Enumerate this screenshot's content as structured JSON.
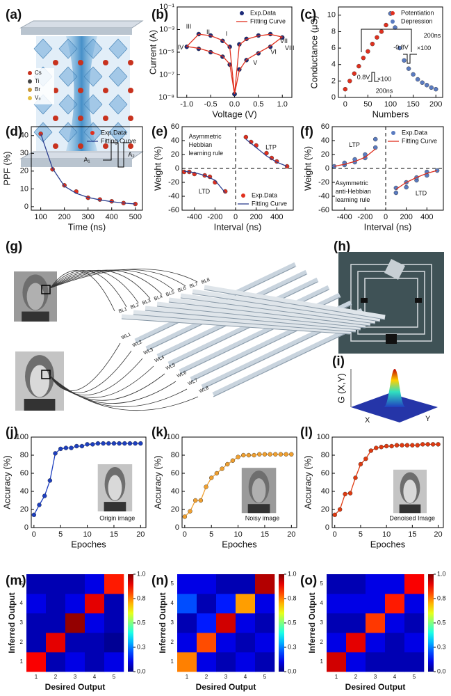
{
  "figure": {
    "panel_labels": [
      "(a)",
      "(b)",
      "(c)",
      "(d)",
      "(e)",
      "(f)",
      "(g)",
      "(h)",
      "(i)",
      "(j)",
      "(k)",
      "(l)",
      "(m)",
      "(n)",
      "(o)"
    ],
    "panel_a": {
      "legend": [
        "Cs",
        "Ti",
        "Br",
        "V₀"
      ]
    },
    "panel_g": {
      "bit_lines": [
        "BL1",
        "BL2",
        "BL3",
        "BL4",
        "BL5",
        "BL6",
        "BL7",
        "BL8"
      ],
      "word_lines": [
        "WL1",
        "WL2",
        "WL3",
        "WL4",
        "WL5",
        "WL6",
        "WL7",
        "WL8"
      ]
    },
    "panel_i": {
      "z_label": "G (X,Y)",
      "x_label": "X",
      "y_label": "Y"
    }
  },
  "chart_data": [
    {
      "type": "line",
      "xlabel": "Voltage (V)",
      "ylabel": "Current (A)",
      "ylog": true,
      "xlim": [
        -1.2,
        1.2
      ],
      "xticks": [
        {
          "value": -1,
          "label": "-1.0"
        },
        -0.5,
        {
          "value": 0,
          "label": "0.0"
        },
        0.5,
        {
          "value": 1,
          "label": "1.0"
        }
      ],
      "ylim": [
        1e-09,
        0.1
      ],
      "yticks": [
        {
          "value": 1e-09,
          "label": "10⁻⁹"
        },
        {
          "value": 1e-07,
          "label": "10⁻⁷"
        },
        {
          "value": 1e-05,
          "label": "10⁻⁵"
        },
        {
          "value": 0.001,
          "label": "10⁻³"
        },
        {
          "value": 0.1,
          "label": "10⁻¹"
        }
      ],
      "x": [
        0,
        0.1,
        0.25,
        0.5,
        0.75,
        1.0,
        0.75,
        0.5,
        0.25,
        0.1,
        0,
        -0.1,
        -0.25,
        -0.5,
        -0.75,
        -1.0,
        -0.75,
        -0.5,
        -0.25,
        -0.1,
        0
      ],
      "series": [
        {
          "name": "Exp.Data",
          "color": "#1c2a78",
          "style": "markers",
          "values": [
            2e-09,
            3e-07,
            2e-06,
            8e-06,
            3e-05,
            0.0002,
            0.0004,
            0.0003,
            0.00015,
            5e-05,
            2e-09,
            3e-05,
            0.0001,
            0.0003,
            0.0004,
            3e-05,
            2e-05,
            1e-05,
            4e-06,
            8e-07,
            2e-09
          ]
        },
        {
          "name": "Fitting Curve",
          "color": "#e0301e",
          "style": "line",
          "values": [
            2e-09,
            2.5e-07,
            2.2e-06,
            9e-06,
            3.5e-05,
            0.00022,
            0.00038,
            0.00028,
            0.00014,
            4.5e-05,
            2e-09,
            2.8e-05,
            0.00011,
            0.00029,
            0.00039,
            3.2e-05,
            2.2e-05,
            1.1e-05,
            4.5e-06,
            9e-07,
            2e-09
          ]
        }
      ],
      "legend": "upper right",
      "annotations": [
        "I",
        "II",
        "III",
        "IV",
        "V",
        "VI",
        "VII",
        "VIII"
      ]
    },
    {
      "type": "scatter",
      "xlabel": "Numbers",
      "ylabel": "Conductance (μS)",
      "xlim": [
        -15,
        215
      ],
      "xticks": [
        0,
        50,
        100,
        150,
        200
      ],
      "ylim": [
        0,
        11
      ],
      "yticks": [
        0,
        2,
        4,
        6,
        8,
        10
      ],
      "series": [
        {
          "name": "Potentiation",
          "color": "#e0301e",
          "style": "markers",
          "x": [
            0,
            10,
            20,
            30,
            40,
            50,
            60,
            70,
            80,
            90,
            100
          ],
          "values": [
            1.0,
            2.0,
            2.9,
            3.8,
            4.8,
            5.6,
            6.5,
            7.3,
            8.0,
            8.8,
            10.2
          ]
        },
        {
          "name": "Depression",
          "color": "#5a7bc0",
          "style": "markers",
          "x": [
            100,
            110,
            120,
            130,
            140,
            150,
            160,
            170,
            180,
            190,
            200
          ],
          "values": [
            10.2,
            8.5,
            6.0,
            4.5,
            3.5,
            2.8,
            2.2,
            1.8,
            1.5,
            1.2,
            1.0
          ]
        }
      ],
      "legend": "upper right",
      "annotations": [
        "0.8V",
        "×100",
        "200ns",
        "-0.8V",
        "×100",
        "200ns"
      ]
    },
    {
      "type": "line",
      "xlabel": "Time (ns)",
      "ylabel": "PPF (%)",
      "xlim": [
        60,
        530
      ],
      "xticks": [
        100,
        200,
        300,
        400,
        500
      ],
      "ylim": [
        -2,
        45
      ],
      "yticks": [
        0,
        10,
        20,
        30,
        40
      ],
      "x": [
        100,
        150,
        200,
        250,
        300,
        350,
        400,
        450,
        500
      ],
      "series": [
        {
          "name": "Exp.Data",
          "color": "#e0301e",
          "style": "markers",
          "values": [
            41,
            21,
            12,
            8.5,
            5,
            4,
            3,
            2,
            1.5
          ]
        },
        {
          "name": "Fitting Curve",
          "color": "#2c3f8f",
          "style": "line",
          "values": [
            41,
            21.5,
            11.5,
            7.5,
            5.2,
            3.8,
            2.8,
            2,
            1.5
          ]
        }
      ],
      "legend": "upper right",
      "annotations": [
        "A₁",
        "A₂"
      ]
    },
    {
      "type": "line",
      "xlabel": "Interval (ns)",
      "ylabel": "Weight (%)",
      "zero_lines": true,
      "xlim": [
        -520,
        560
      ],
      "xticks": [
        -400,
        -200,
        0,
        200,
        400
      ],
      "ylim": [
        -60,
        60
      ],
      "yticks": [
        -60,
        -40,
        -20,
        0,
        20,
        40,
        60
      ],
      "series": [
        {
          "name": "Exp.Data",
          "color": "#e0301e",
          "style": "markers",
          "x": [
            -500,
            -450,
            -400,
            -300,
            -250,
            -200,
            -100,
            100,
            150,
            200,
            300,
            350,
            400,
            500
          ],
          "values": [
            -5,
            -5,
            -8,
            -10,
            -12,
            -20,
            -33,
            45,
            38,
            33,
            22,
            15,
            10,
            3
          ]
        },
        {
          "name": "Fitting Curve",
          "color": "#2c3f8f",
          "style": "line",
          "x": [
            -500,
            -400,
            -300,
            -200,
            -100,
            0,
            100,
            200,
            300,
            400,
            500
          ],
          "values": [
            -4,
            -6,
            -10,
            -17,
            -35,
            null,
            42,
            30,
            18,
            9,
            3
          ]
        }
      ],
      "legend": "lower right",
      "annotations": [
        "Asymmetric",
        "Hebbian",
        "learning rule",
        "LTP",
        "LTD"
      ]
    },
    {
      "type": "line",
      "xlabel": "Interval (ns)",
      "ylabel": "Weight (%)",
      "zero_lines": true,
      "xlim": [
        -520,
        560
      ],
      "xticks": [
        -400,
        -200,
        0,
        200,
        400
      ],
      "ylim": [
        -60,
        60
      ],
      "yticks": [
        -60,
        -40,
        -20,
        0,
        20,
        40,
        60
      ],
      "series": [
        {
          "name": "Exp.Data",
          "color": "#5a7bc0",
          "style": "markers",
          "x": [
            -500,
            -400,
            -400,
            -300,
            -300,
            -200,
            -200,
            -100,
            -100,
            100,
            100,
            200,
            200,
            300,
            300,
            400,
            400,
            500
          ],
          "values": [
            3,
            5,
            8,
            9,
            13,
            15,
            20,
            30,
            42,
            -35,
            -28,
            -27,
            -20,
            -17,
            -13,
            -10,
            -5,
            -3
          ]
        },
        {
          "name": "Fitting Curve",
          "color": "#e0301e",
          "style": "line",
          "x": [
            -500,
            -400,
            -300,
            -200,
            -100,
            0,
            100,
            200,
            300,
            400,
            500
          ],
          "values": [
            3,
            6,
            10,
            16,
            28,
            null,
            -30,
            -20,
            -13,
            -7,
            -3
          ]
        }
      ],
      "legend": "upper right",
      "annotations": [
        "LTP",
        "Asymmetric",
        "anti-Hebbian",
        "learning rule",
        "LTD"
      ]
    },
    {
      "type": "line",
      "xlabel": "Epoches",
      "ylabel": "Accuracy (%)",
      "xlim": [
        -0.5,
        21
      ],
      "xticks": [
        0,
        5,
        10,
        15,
        20
      ],
      "ylim": [
        0,
        100
      ],
      "yticks": [
        0,
        20,
        40,
        60,
        80,
        100
      ],
      "x": [
        0,
        1,
        2,
        3,
        4,
        5,
        6,
        7,
        8,
        9,
        10,
        11,
        12,
        13,
        14,
        15,
        16,
        17,
        18,
        19,
        20
      ],
      "series": [
        {
          "color": "#1d3fbf",
          "style": "line+markers",
          "values": [
            14,
            25,
            35,
            52,
            82,
            87,
            88,
            88,
            90,
            90,
            92,
            92,
            93,
            93,
            93,
            93,
            93,
            93,
            93,
            93,
            93
          ]
        }
      ],
      "annotations": [
        "Origin image"
      ]
    },
    {
      "type": "line",
      "xlabel": "Epoches",
      "ylabel": "Accuracy (%)",
      "xlim": [
        -0.5,
        21
      ],
      "xticks": [
        0,
        5,
        10,
        15,
        20
      ],
      "ylim": [
        0,
        100
      ],
      "yticks": [
        0,
        20,
        40,
        60,
        80,
        100
      ],
      "x": [
        0,
        1,
        2,
        3,
        4,
        5,
        6,
        7,
        8,
        9,
        10,
        11,
        12,
        13,
        14,
        15,
        16,
        17,
        18,
        19,
        20
      ],
      "series": [
        {
          "color": "#f0a030",
          "style": "line+markers",
          "values": [
            12,
            18,
            30,
            30,
            45,
            55,
            60,
            65,
            70,
            74,
            78,
            80,
            80,
            80,
            81,
            81,
            81,
            81,
            81,
            81,
            81
          ]
        }
      ],
      "annotations": [
        "Noisy image"
      ]
    },
    {
      "type": "line",
      "xlabel": "Epoches",
      "ylabel": "Accuracy (%)",
      "xlim": [
        -0.5,
        21
      ],
      "xticks": [
        0,
        5,
        10,
        15,
        20
      ],
      "ylim": [
        0,
        100
      ],
      "yticks": [
        0,
        20,
        40,
        60,
        80,
        100
      ],
      "x": [
        0,
        1,
        2,
        3,
        4,
        5,
        6,
        7,
        8,
        9,
        10,
        11,
        12,
        13,
        14,
        15,
        16,
        17,
        18,
        19,
        20
      ],
      "series": [
        {
          "color": "#e03a10",
          "style": "line+markers",
          "values": [
            14,
            20,
            37,
            38,
            55,
            70,
            76,
            85,
            88,
            89,
            90,
            90,
            91,
            91,
            91,
            91,
            91,
            92,
            92,
            92,
            92
          ]
        }
      ],
      "annotations": [
        "Denoised Image"
      ]
    },
    {
      "type": "heatmap",
      "xlabel": "Desired Output",
      "ylabel": "Inferred Output",
      "colormap": "jet",
      "x_categories": [
        1,
        2,
        3,
        4,
        5
      ],
      "y_categories": [
        1,
        2,
        3,
        4,
        5
      ],
      "zlim": [
        0,
        1
      ],
      "cticks": [
        {
          "value": 0,
          "label": "0.0"
        },
        {
          "value": 0.25,
          "label": "0.3"
        },
        0.5,
        {
          "value": 0.75,
          "label": "0.8"
        },
        {
          "value": 1,
          "label": "1.0"
        }
      ],
      "values": [
        [
          0.88,
          0.05,
          0.1,
          0.05,
          0.1
        ],
        [
          0.05,
          0.9,
          0.05,
          0.05,
          0.02
        ],
        [
          0.05,
          0.05,
          0.98,
          0.1,
          0.05
        ],
        [
          0.1,
          0.05,
          0.1,
          0.9,
          0.05
        ],
        [
          0.05,
          0.05,
          0.05,
          0.1,
          0.85
        ]
      ]
    },
    {
      "type": "heatmap",
      "xlabel": "Desired Output",
      "ylabel": "Inferred Output",
      "colormap": "jet",
      "x_categories": [
        1,
        2,
        3,
        4,
        5
      ],
      "y_categories": [
        1,
        2,
        3,
        4,
        5
      ],
      "zlim": [
        0,
        1
      ],
      "cticks": [
        {
          "value": 0,
          "label": "0.0"
        },
        {
          "value": 0.25,
          "label": "0.3"
        },
        0.5,
        {
          "value": 0.75,
          "label": "0.8"
        },
        {
          "value": 1,
          "label": "1.0"
        }
      ],
      "values": [
        [
          0.75,
          0.1,
          0.05,
          0.1,
          0.05
        ],
        [
          0.1,
          0.8,
          0.1,
          0.05,
          0.1
        ],
        [
          0.05,
          0.15,
          0.92,
          0.1,
          0.05
        ],
        [
          0.2,
          0.05,
          0.15,
          0.72,
          0.1
        ],
        [
          0.1,
          0.1,
          0.05,
          0.05,
          0.95
        ]
      ]
    },
    {
      "type": "heatmap",
      "xlabel": "Desired Output",
      "ylabel": "Inferred Output",
      "colormap": "jet",
      "x_categories": [
        1,
        2,
        3,
        4,
        5
      ],
      "y_categories": [
        1,
        2,
        3,
        4,
        5
      ],
      "zlim": [
        0,
        1
      ],
      "cticks": [
        {
          "value": 0,
          "label": "0.0"
        },
        {
          "value": 0.25,
          "label": "0.3"
        },
        0.5,
        {
          "value": 0.75,
          "label": "0.8"
        },
        {
          "value": 1,
          "label": "1.0"
        }
      ],
      "values": [
        [
          0.92,
          0.1,
          0.05,
          0.05,
          0.05
        ],
        [
          0.1,
          0.9,
          0.1,
          0.05,
          0.1
        ],
        [
          0.05,
          0.05,
          0.82,
          0.1,
          0.05
        ],
        [
          0.1,
          0.1,
          0.1,
          0.85,
          0.1
        ],
        [
          0.05,
          0.05,
          0.1,
          0.1,
          0.88
        ]
      ]
    }
  ]
}
